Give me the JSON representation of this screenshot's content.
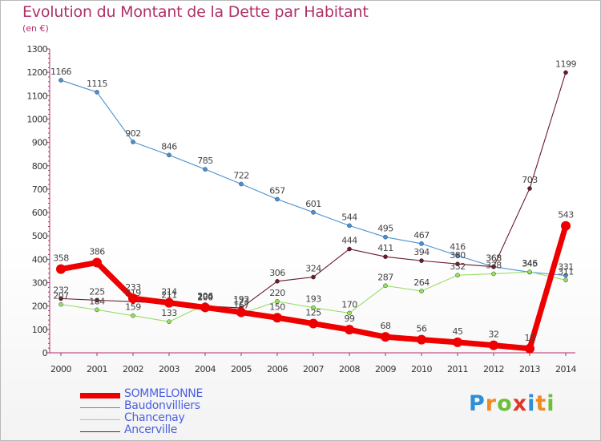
{
  "title": "Evolution du Montant de la Dette par Habitant",
  "subtitle": "(en €)",
  "logo_text": "Proxiti",
  "chart_data": {
    "type": "line",
    "x": [
      "2000",
      "2001",
      "2002",
      "2003",
      "2004",
      "2005",
      "2006",
      "2007",
      "2008",
      "2009",
      "2010",
      "2011",
      "2012",
      "2013",
      "2014"
    ],
    "ylim": [
      0,
      1300
    ],
    "yticks": [
      0,
      100,
      200,
      300,
      400,
      500,
      600,
      700,
      800,
      900,
      1000,
      1100,
      1200,
      1300
    ],
    "grid": false,
    "legend_position": "bottom-left",
    "series": [
      {
        "name": "Baudonvilliers",
        "color": "#4a90d0",
        "values": [
          1166,
          1115,
          902,
          846,
          785,
          722,
          657,
          601,
          544,
          495,
          467,
          416,
          368,
          345,
          331
        ],
        "labels": [
          "1166",
          "1115",
          "902",
          "846",
          "785",
          "722",
          "657",
          "601",
          "544",
          "495",
          "467",
          "416",
          "368",
          "345",
          "331"
        ]
      },
      {
        "name": "Chancenay",
        "color": "#99dd66",
        "values": [
          207,
          184,
          159,
          133,
          206,
          167,
          220,
          193,
          170,
          287,
          264,
          332,
          338,
          346,
          311
        ],
        "labels": [
          "207",
          "184",
          "159",
          "133",
          "206",
          "167",
          "220",
          "193",
          "170",
          "287",
          "264",
          "332",
          "338",
          "346",
          "311"
        ]
      },
      {
        "name": "Ancerville",
        "color": "#6b1b2a",
        "values": [
          232,
          225,
          219,
          211,
          200,
          192,
          306,
          324,
          444,
          411,
          394,
          380,
          368,
          703,
          1199
        ],
        "labels": [
          "232",
          "225",
          "219",
          "211",
          "200",
          "192",
          "306",
          "324",
          "444",
          "411",
          "394",
          "380",
          "368",
          "703",
          "1199"
        ]
      },
      {
        "name": "SOMMELONNE",
        "color": "#ee0000",
        "values": [
          358,
          386,
          233,
          214,
          194,
          173,
          150,
          125,
          99,
          68,
          56,
          45,
          32,
          18,
          543
        ],
        "labels": [
          "358",
          "386",
          "233",
          "214",
          "194",
          "173",
          "150",
          "125",
          "99",
          "68",
          "56",
          "45",
          "32",
          "18",
          "543"
        ]
      }
    ]
  },
  "colors": {
    "title": "#b0306a",
    "axis": "#b0306a",
    "label": "#444444"
  }
}
